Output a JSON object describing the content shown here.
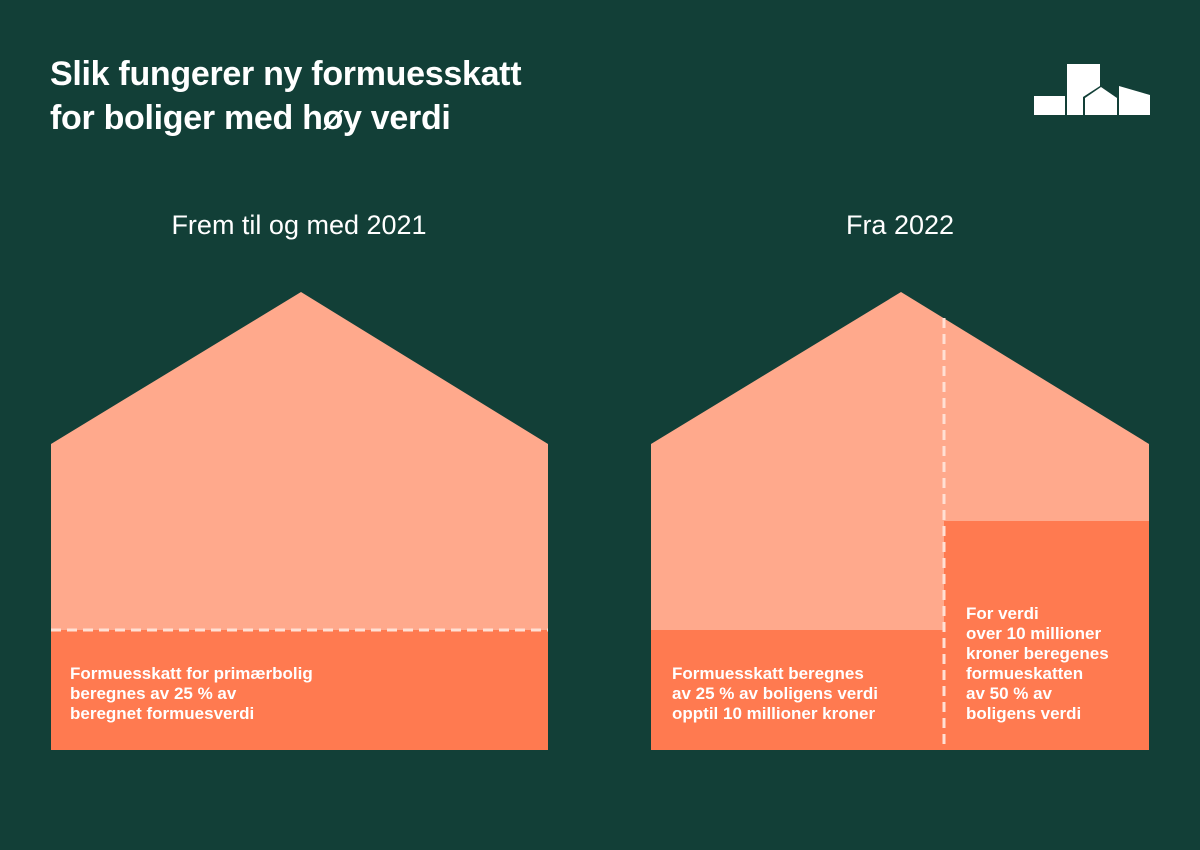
{
  "title": {
    "line1": "Slik fungerer ny formuesskatt",
    "line2": "for boliger med høy verdi"
  },
  "logo_icon": "houses-logo-icon",
  "colors": {
    "background": "#123f37",
    "house_light": "#ffa98c",
    "house_dark": "#ff7a50",
    "dash": "#ffe0d4"
  },
  "left": {
    "heading": "Frem til og med 2021",
    "text": [
      "Formuesskatt for primærbolig",
      "beregnes av 25 % av",
      "beregnet formuesverdi"
    ]
  },
  "right": {
    "heading": "Fra 2022",
    "text_left": [
      "Formuesskatt beregnes",
      "av 25 % av boligens verdi",
      "opptil 10 millioner kroner"
    ],
    "text_right": [
      "For verdi",
      "over 10 millioner",
      "kroner beregenes",
      "formueskatten",
      "av 50 % av",
      "boligens verdi"
    ]
  }
}
